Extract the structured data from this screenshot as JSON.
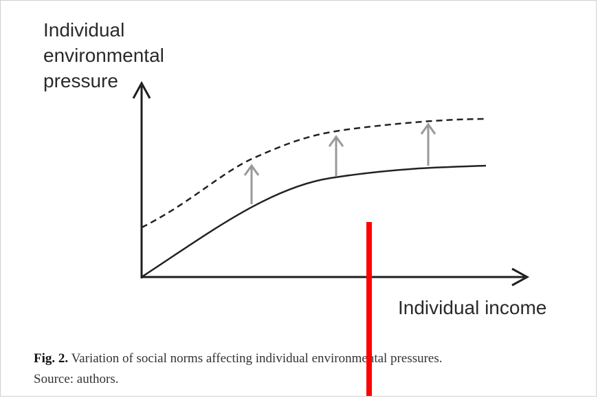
{
  "diagram": {
    "y_axis_label": [
      "Individual",
      "environmental",
      "pressure"
    ],
    "x_axis_label": "Individual income",
    "caption": {
      "label": "Fig. 2.",
      "text": "Variation of social norms affecting individual environmental pressures.",
      "source": "Source: authors."
    }
  }
}
